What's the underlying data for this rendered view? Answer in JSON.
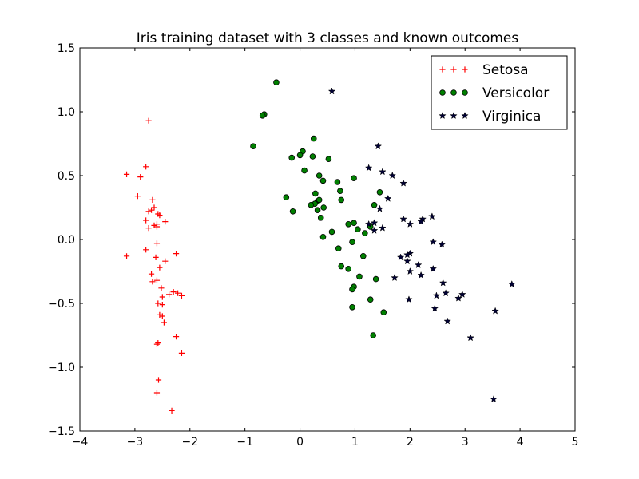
{
  "chart_data": {
    "type": "scatter",
    "title": "Iris training dataset with 3 classes and known outcomes",
    "xlabel": "",
    "ylabel": "",
    "xlim": [
      -4,
      5
    ],
    "ylim": [
      -1.5,
      1.5
    ],
    "xticks": [
      "−4",
      "−3",
      "−2",
      "−1",
      "0",
      "1",
      "2",
      "3",
      "4",
      "5"
    ],
    "yticks": [
      "1.5",
      "1.0",
      "0.5",
      "0.0",
      "−0.5",
      "−1.0",
      "−1.5"
    ],
    "grid": false,
    "legend_position": "top-right",
    "series": [
      {
        "name": "Setosa",
        "marker": "plus",
        "color": "#ff0000",
        "points": [
          [
            -2.75,
            0.93
          ],
          [
            -3.15,
            0.51
          ],
          [
            -2.9,
            0.49
          ],
          [
            -2.8,
            0.57
          ],
          [
            -2.95,
            0.34
          ],
          [
            -2.68,
            0.31
          ],
          [
            -2.65,
            0.25
          ],
          [
            -2.7,
            0.23
          ],
          [
            -2.75,
            0.22
          ],
          [
            -2.58,
            0.2
          ],
          [
            -2.55,
            0.19
          ],
          [
            -2.8,
            0.15
          ],
          [
            -2.45,
            0.14
          ],
          [
            -2.6,
            0.12
          ],
          [
            -2.65,
            0.11
          ],
          [
            -2.6,
            0.1
          ],
          [
            -2.75,
            0.09
          ],
          [
            -2.6,
            -0.03
          ],
          [
            -2.8,
            -0.08
          ],
          [
            -2.25,
            -0.11
          ],
          [
            -3.15,
            -0.13
          ],
          [
            -2.62,
            -0.14
          ],
          [
            -2.45,
            -0.17
          ],
          [
            -2.55,
            -0.22
          ],
          [
            -2.7,
            -0.27
          ],
          [
            -2.6,
            -0.32
          ],
          [
            -2.68,
            -0.33
          ],
          [
            -2.52,
            -0.38
          ],
          [
            -2.3,
            -0.41
          ],
          [
            -2.22,
            -0.42
          ],
          [
            -2.38,
            -0.43
          ],
          [
            -2.15,
            -0.44
          ],
          [
            -2.5,
            -0.45
          ],
          [
            -2.58,
            -0.5
          ],
          [
            -2.5,
            -0.51
          ],
          [
            -2.55,
            -0.59
          ],
          [
            -2.5,
            -0.6
          ],
          [
            -2.47,
            -0.65
          ],
          [
            -2.25,
            -0.76
          ],
          [
            -2.58,
            -0.81
          ],
          [
            -2.6,
            -0.82
          ],
          [
            -2.15,
            -0.89
          ],
          [
            -2.57,
            -1.1
          ],
          [
            -2.6,
            -1.2
          ],
          [
            -2.33,
            -1.34
          ]
        ]
      },
      {
        "name": "Versicolor",
        "marker": "circle",
        "color": "#008000",
        "points": [
          [
            -0.43,
            1.23
          ],
          [
            -0.65,
            0.98
          ],
          [
            -0.68,
            0.97
          ],
          [
            -0.85,
            0.73
          ],
          [
            0.25,
            0.79
          ],
          [
            0.05,
            0.69
          ],
          [
            0.0,
            0.66
          ],
          [
            -0.15,
            0.64
          ],
          [
            0.23,
            0.65
          ],
          [
            0.52,
            0.63
          ],
          [
            0.08,
            0.54
          ],
          [
            0.35,
            0.5
          ],
          [
            0.42,
            0.46
          ],
          [
            0.68,
            0.45
          ],
          [
            0.98,
            0.48
          ],
          [
            0.73,
            0.38
          ],
          [
            0.28,
            0.36
          ],
          [
            1.45,
            0.37
          ],
          [
            0.75,
            0.31
          ],
          [
            -0.25,
            0.33
          ],
          [
            0.32,
            0.3
          ],
          [
            0.35,
            0.31
          ],
          [
            0.27,
            0.28
          ],
          [
            0.2,
            0.27
          ],
          [
            1.35,
            0.27
          ],
          [
            0.43,
            0.25
          ],
          [
            0.32,
            0.23
          ],
          [
            -0.13,
            0.22
          ],
          [
            0.38,
            0.17
          ],
          [
            0.98,
            0.13
          ],
          [
            0.88,
            0.12
          ],
          [
            1.05,
            0.08
          ],
          [
            1.28,
            0.1
          ],
          [
            0.58,
            0.06
          ],
          [
            1.18,
            0.05
          ],
          [
            0.42,
            0.02
          ],
          [
            0.95,
            -0.02
          ],
          [
            0.7,
            -0.07
          ],
          [
            1.15,
            -0.13
          ],
          [
            0.75,
            -0.21
          ],
          [
            0.88,
            -0.23
          ],
          [
            1.08,
            -0.29
          ],
          [
            1.38,
            -0.31
          ],
          [
            0.98,
            -0.37
          ],
          [
            0.95,
            -0.39
          ],
          [
            1.28,
            -0.47
          ],
          [
            0.95,
            -0.53
          ],
          [
            1.52,
            -0.57
          ],
          [
            1.33,
            -0.75
          ]
        ]
      },
      {
        "name": "Virginica",
        "marker": "star",
        "color": "#000033",
        "points": [
          [
            0.58,
            1.16
          ],
          [
            1.42,
            0.73
          ],
          [
            1.25,
            0.56
          ],
          [
            1.5,
            0.53
          ],
          [
            1.68,
            0.5
          ],
          [
            1.88,
            0.44
          ],
          [
            1.6,
            0.32
          ],
          [
            1.45,
            0.24
          ],
          [
            1.88,
            0.16
          ],
          [
            2.23,
            0.16
          ],
          [
            2.4,
            0.18
          ],
          [
            2.2,
            0.14
          ],
          [
            1.25,
            0.12
          ],
          [
            1.35,
            0.13
          ],
          [
            2.0,
            0.12
          ],
          [
            1.5,
            0.09
          ],
          [
            1.35,
            0.07
          ],
          [
            2.42,
            -0.02
          ],
          [
            2.58,
            -0.04
          ],
          [
            2.0,
            -0.11
          ],
          [
            1.95,
            -0.12
          ],
          [
            1.83,
            -0.14
          ],
          [
            1.95,
            -0.17
          ],
          [
            2.15,
            -0.2
          ],
          [
            2.42,
            -0.23
          ],
          [
            2.0,
            -0.25
          ],
          [
            2.2,
            -0.28
          ],
          [
            1.72,
            -0.3
          ],
          [
            2.6,
            -0.34
          ],
          [
            3.85,
            -0.35
          ],
          [
            2.48,
            -0.44
          ],
          [
            2.65,
            -0.42
          ],
          [
            2.95,
            -0.43
          ],
          [
            2.88,
            -0.46
          ],
          [
            1.98,
            -0.47
          ],
          [
            2.45,
            -0.54
          ],
          [
            3.55,
            -0.56
          ],
          [
            2.68,
            -0.64
          ],
          [
            3.1,
            -0.77
          ],
          [
            3.52,
            -1.25
          ]
        ]
      }
    ]
  }
}
